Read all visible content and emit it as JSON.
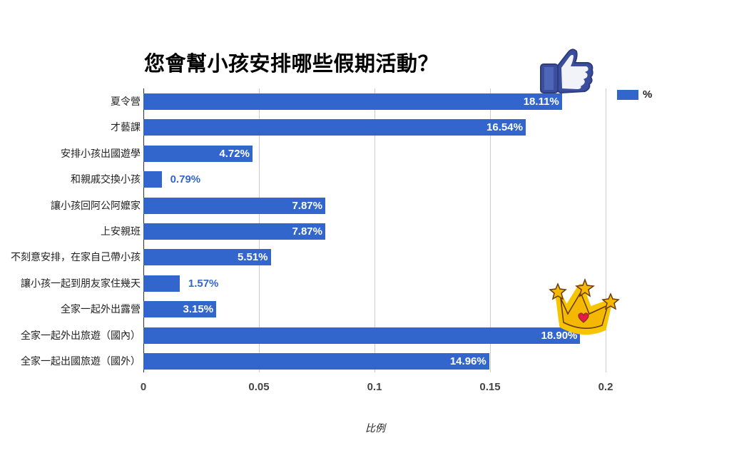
{
  "chart_data": {
    "type": "bar",
    "orientation": "horizontal",
    "title": "您會幫小孩安排哪些假期活動？",
    "xlabel": "比例",
    "ylabel": "",
    "xlim": [
      0,
      0.2
    ],
    "x_ticks": [
      "0",
      "0.05",
      "0.1",
      "0.15",
      "0.2"
    ],
    "grid": true,
    "legend_position": "right-top",
    "categories": [
      "夏令營",
      "才藝課",
      "安排小孩出國遊學",
      "和親戚交換小孩",
      "讓小孩回阿公阿嬤家",
      "上安親班",
      "不刻意安排，在家自己帶小孩",
      "讓小孩一起到朋友家住幾天",
      "全家一起外出露營",
      "全家一起外出旅遊（國內）",
      "全家一起出國旅遊（國外）"
    ],
    "series": [
      {
        "name": "%",
        "color": "#3366cc",
        "values": [
          0.1811,
          0.1654,
          0.0472,
          0.0079,
          0.0787,
          0.0787,
          0.0551,
          0.0157,
          0.0315,
          0.189,
          0.1496
        ],
        "labels": [
          "18.11%",
          "16.54%",
          "4.72%",
          "0.79%",
          "7.87%",
          "7.87%",
          "5.51%",
          "1.57%",
          "3.15%",
          "18.90%",
          "14.96%"
        ]
      }
    ]
  },
  "title": "您會幫小孩安排哪些假期活動？",
  "axis": {
    "xlabel": "比例",
    "ticks": [
      "0",
      "0.05",
      "0.1",
      "0.15",
      "0.2"
    ]
  },
  "legend": {
    "label": "%"
  },
  "colors": {
    "bar": "#3366cc",
    "grid": "#cccccc"
  },
  "stickers": {
    "thumbs_up": "thumbs-up-sticker",
    "crown": "crown-sticker"
  }
}
